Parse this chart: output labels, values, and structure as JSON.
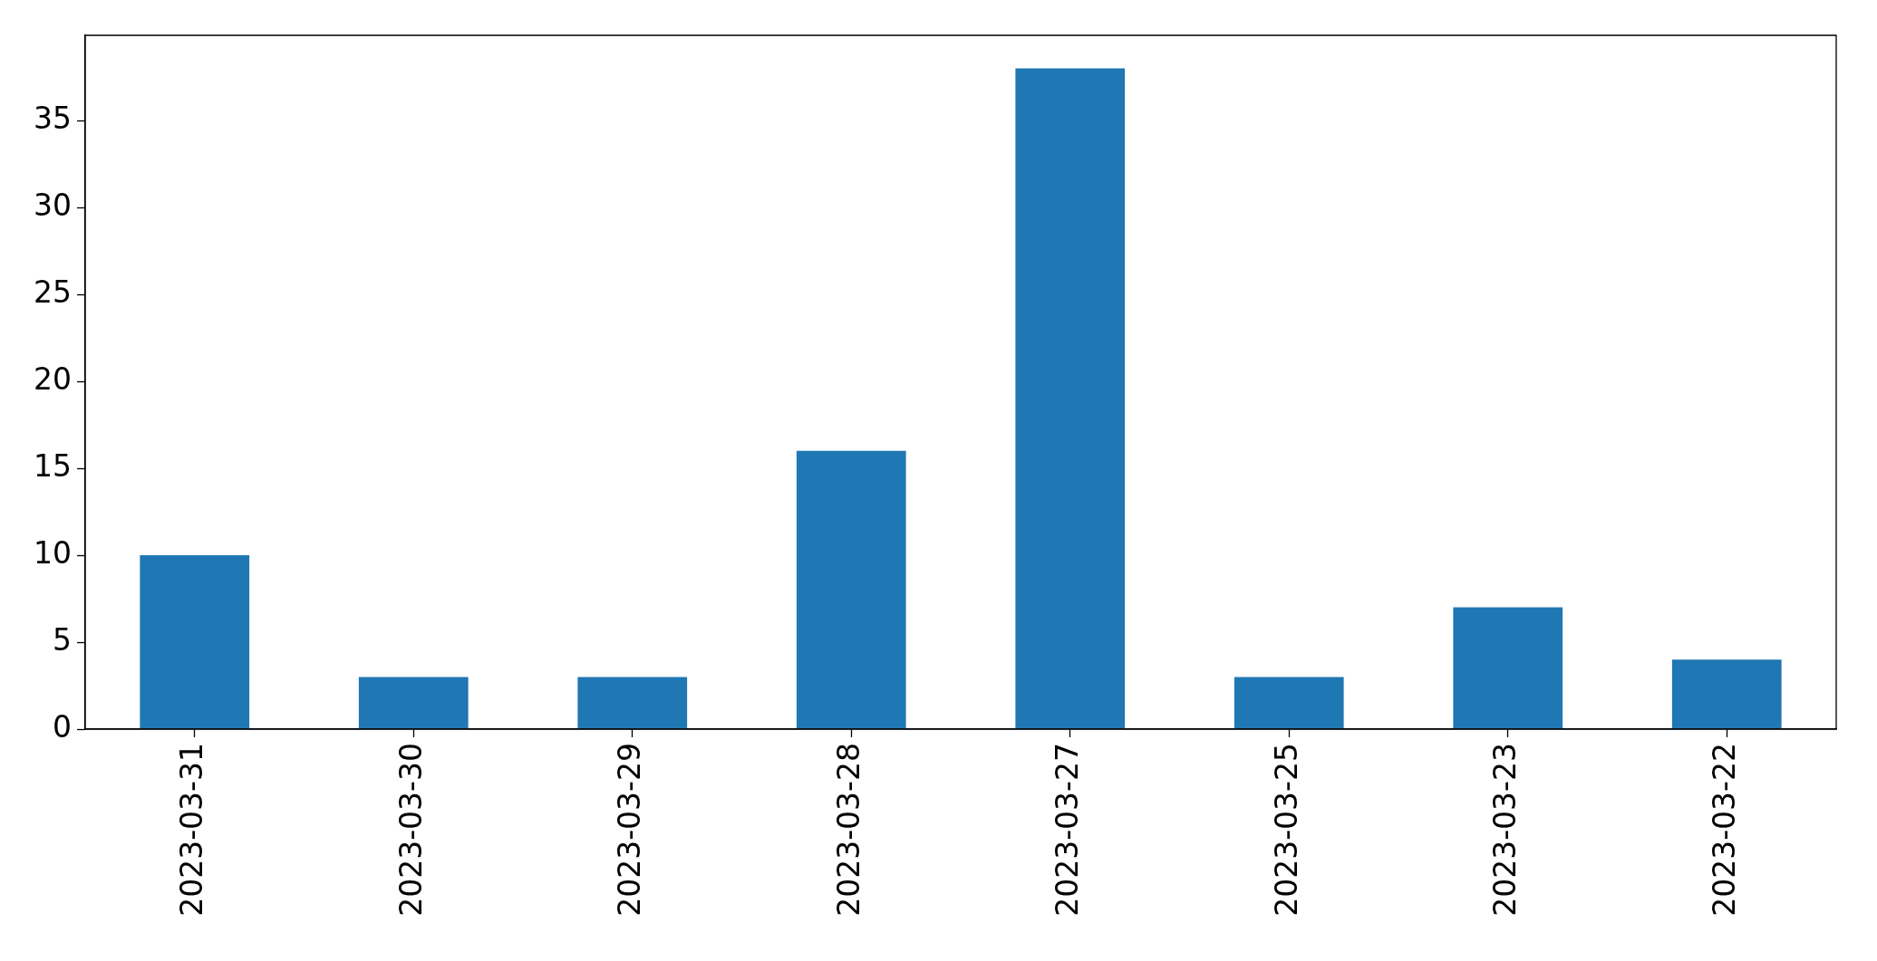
{
  "chart_data": {
    "type": "bar",
    "categories": [
      "2023-03-31",
      "2023-03-30",
      "2023-03-29",
      "2023-03-28",
      "2023-03-27",
      "2023-03-25",
      "2023-03-23",
      "2023-03-22"
    ],
    "values": [
      10,
      3,
      3,
      16,
      38,
      3,
      7,
      4
    ],
    "color": "#1f77b4",
    "ylim": [
      0,
      39.9
    ],
    "yticks": [
      0,
      5,
      10,
      15,
      20,
      25,
      30,
      35
    ]
  }
}
